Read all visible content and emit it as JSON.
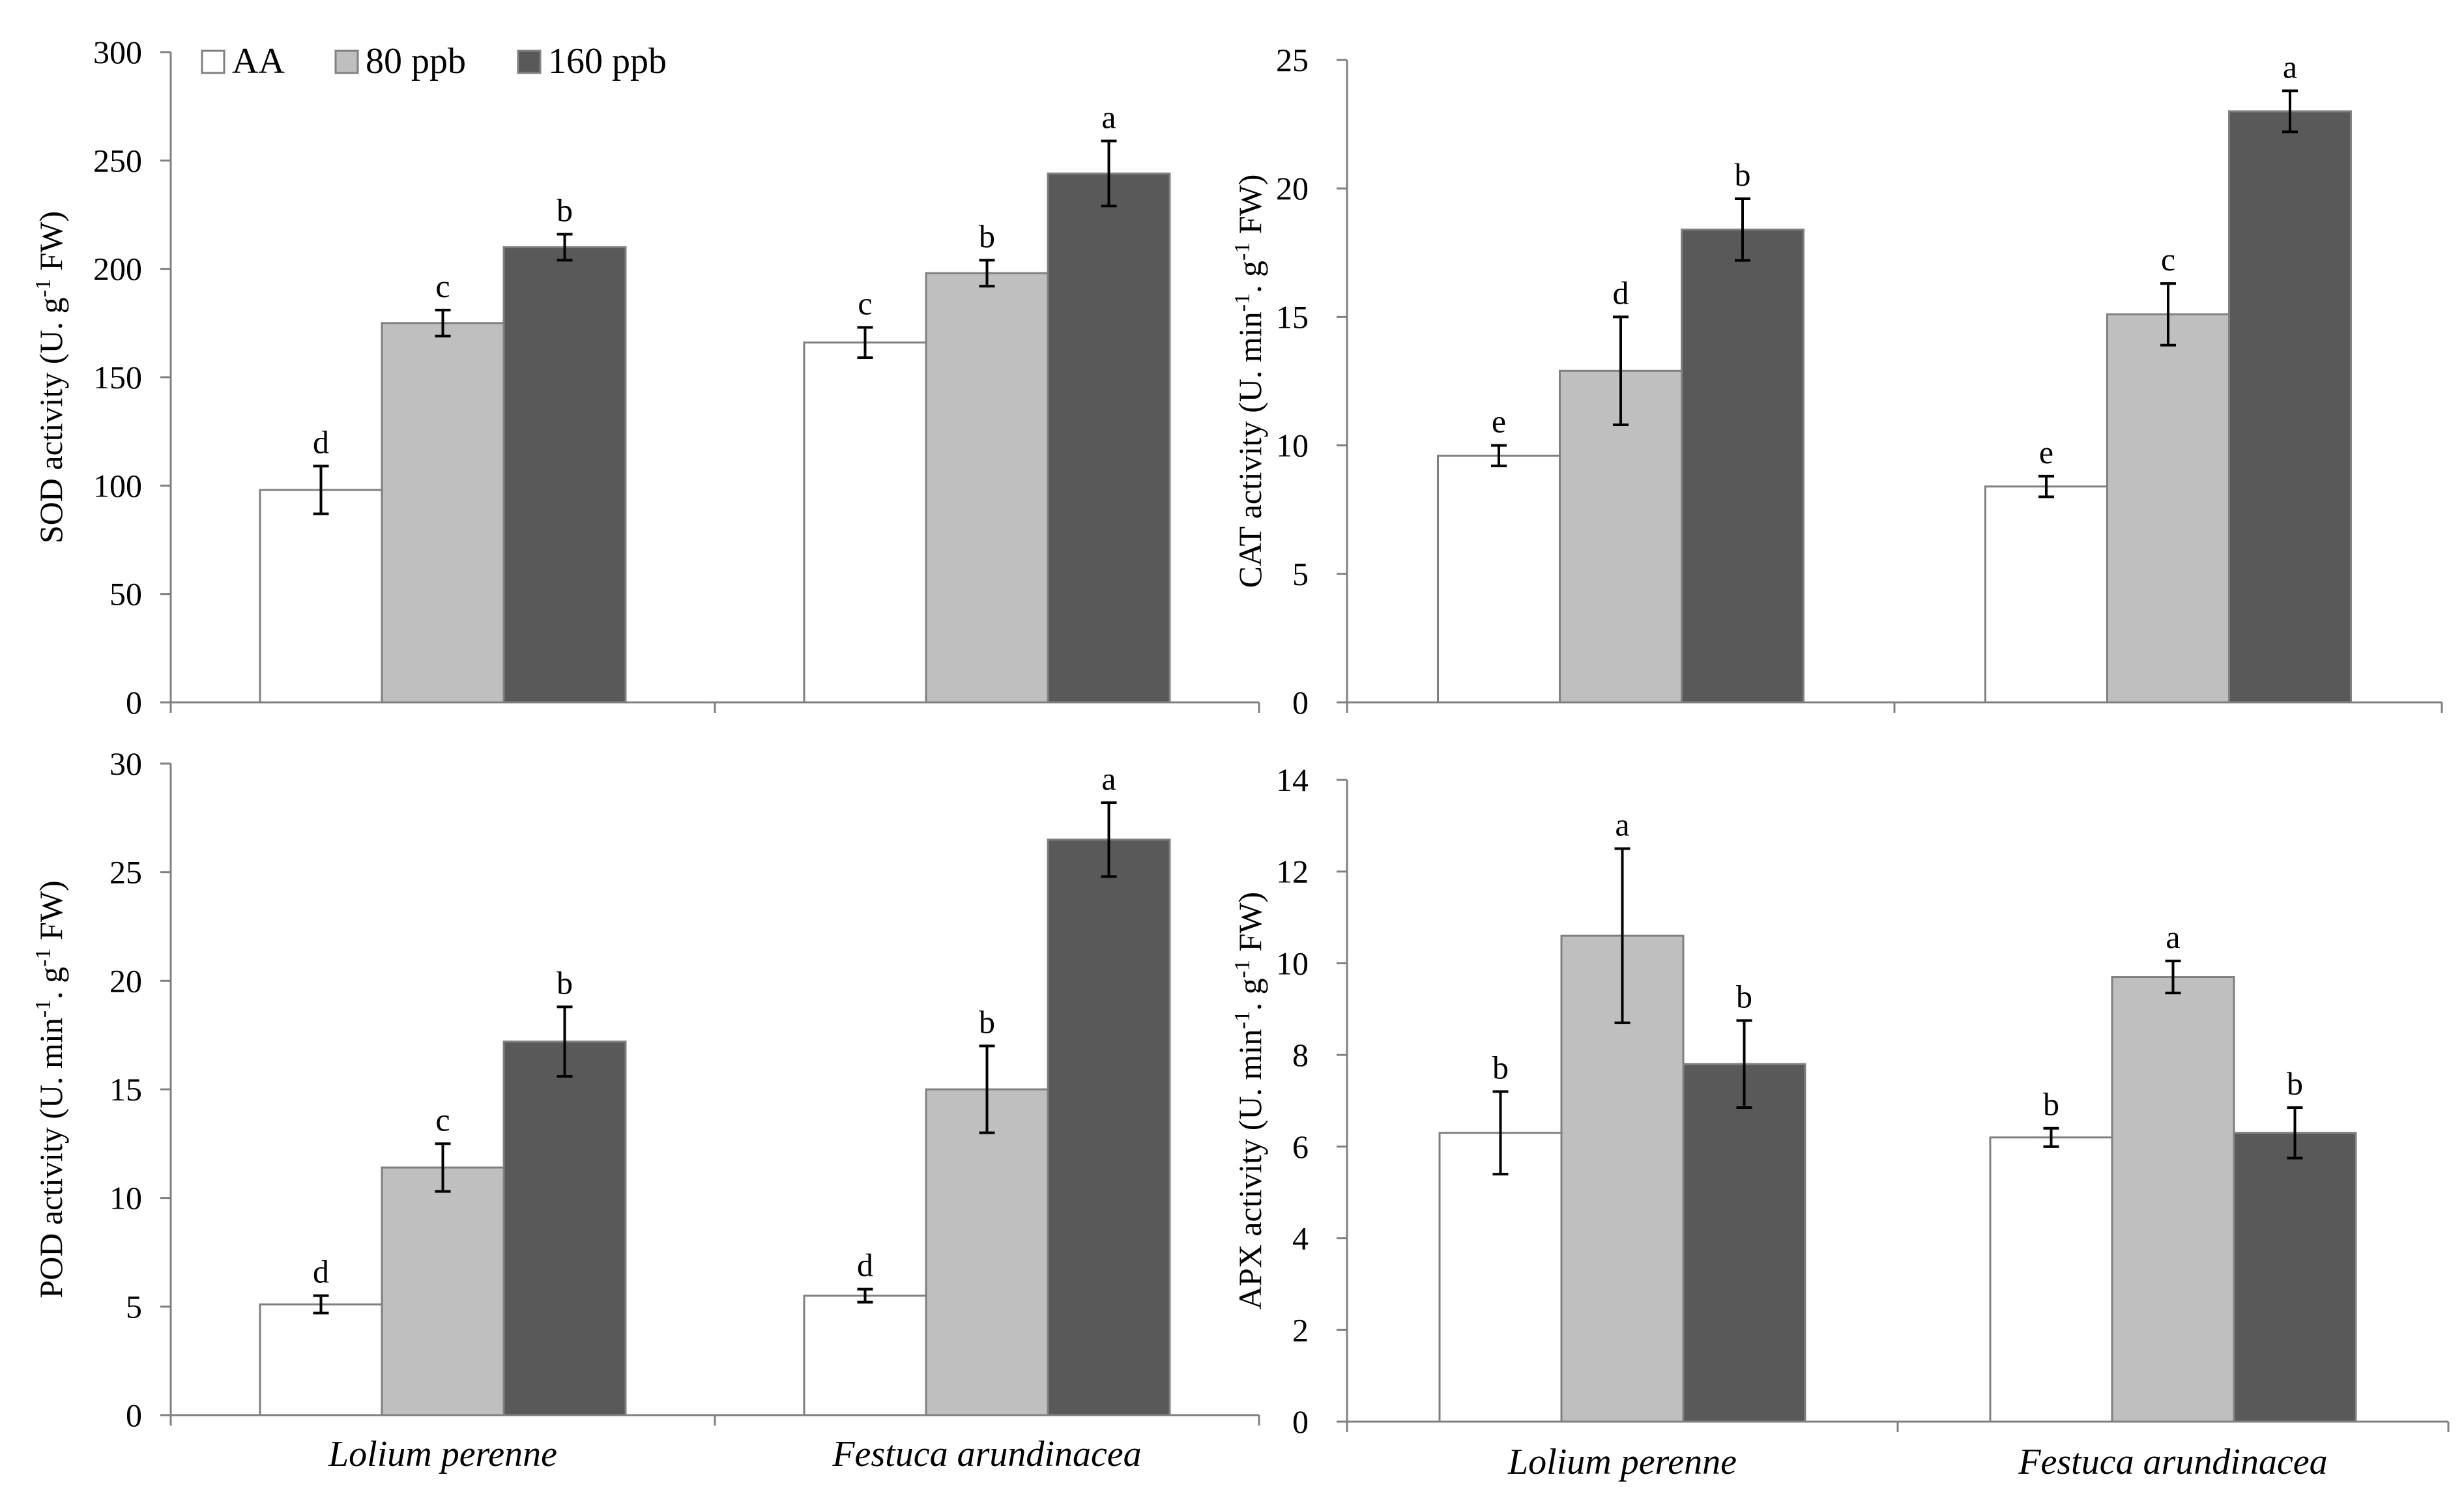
{
  "legend": [
    {
      "name": "AA",
      "fill": "#ffffff"
    },
    {
      "name": "80 ppb",
      "fill": "#bfbfbf"
    },
    {
      "name": "160 ppb",
      "fill": "#595959"
    }
  ],
  "colors": {
    "bar_outline": "#808080",
    "axis": "#808080",
    "error_bar": "#000000"
  },
  "chart_data": [
    {
      "type": "bar",
      "panel": "SOD",
      "categories": [
        "Lolium perenne",
        "Festuca arundinacea"
      ],
      "ylabel_main": "SOD activity  (U. g",
      "ylabel_sup": "-1",
      "ylabel_end": " FW)",
      "ylim": [
        0,
        300
      ],
      "yticks": [
        0,
        50,
        100,
        150,
        200,
        250,
        300
      ],
      "series": [
        {
          "name": "AA",
          "values": [
            98,
            166
          ],
          "errors": [
            11,
            7
          ],
          "letters": [
            "d",
            "c"
          ]
        },
        {
          "name": "80 ppb",
          "values": [
            175,
            198
          ],
          "errors": [
            6,
            6
          ],
          "letters": [
            "c",
            "b"
          ]
        },
        {
          "name": "160 ppb",
          "values": [
            210,
            244
          ],
          "errors": [
            6,
            15
          ],
          "letters": [
            "b",
            "a"
          ]
        }
      ]
    },
    {
      "type": "bar",
      "panel": "CAT",
      "categories": [
        "Lolium perenne",
        "Festuca arundinacea"
      ],
      "ylabel_main": "CAT activity  (U. min",
      "ylabel_sup": "-1",
      "ylabel_mid": ". g",
      "ylabel_sup2": "-1",
      "ylabel_end": " FW)",
      "ylim": [
        0,
        25
      ],
      "yticks": [
        0,
        5,
        10,
        15,
        20,
        25
      ],
      "series": [
        {
          "name": "AA",
          "values": [
            9.6,
            8.4
          ],
          "errors": [
            0.4,
            0.4
          ],
          "letters": [
            "e",
            "e"
          ]
        },
        {
          "name": "80 ppb",
          "values": [
            12.9,
            15.1
          ],
          "errors": [
            2.1,
            1.2
          ],
          "letters": [
            "d",
            "c"
          ]
        },
        {
          "name": "160 ppb",
          "values": [
            18.4,
            23.0
          ],
          "errors": [
            1.2,
            0.8
          ],
          "letters": [
            "b",
            "a"
          ]
        }
      ]
    },
    {
      "type": "bar",
      "panel": "POD",
      "categories": [
        "Lolium perenne",
        "Festuca arundinacea"
      ],
      "ylabel_main": "POD activity  (U. min",
      "ylabel_sup": "-1",
      "ylabel_mid": ". g",
      "ylabel_sup2": "-1",
      "ylabel_end": " FW)",
      "ylim": [
        0,
        30
      ],
      "yticks": [
        0,
        5,
        10,
        15,
        20,
        25,
        30
      ],
      "series": [
        {
          "name": "AA",
          "values": [
            5.1,
            5.5
          ],
          "errors": [
            0.4,
            0.3
          ],
          "letters": [
            "d",
            "d"
          ]
        },
        {
          "name": "80 ppb",
          "values": [
            11.4,
            15.0
          ],
          "errors": [
            1.1,
            2.0
          ],
          "letters": [
            "c",
            "b"
          ]
        },
        {
          "name": "160 ppb",
          "values": [
            17.2,
            26.5
          ],
          "errors": [
            1.6,
            1.7
          ],
          "letters": [
            "b",
            "a"
          ]
        }
      ]
    },
    {
      "type": "bar",
      "panel": "APX",
      "categories": [
        "Lolium perenne",
        "Festuca arundinacea"
      ],
      "ylabel_main": "APX activity  (U. min",
      "ylabel_sup": "-1",
      "ylabel_mid": ". g",
      "ylabel_sup2": "-1",
      "ylabel_end": " FW)",
      "ylim": [
        0,
        14
      ],
      "yticks": [
        0,
        2,
        4,
        6,
        8,
        10,
        12,
        14
      ],
      "series": [
        {
          "name": "AA",
          "values": [
            6.3,
            6.2
          ],
          "errors": [
            0.9,
            0.2
          ],
          "letters": [
            "b",
            "b"
          ]
        },
        {
          "name": "80 ppb",
          "values": [
            10.6,
            9.7
          ],
          "errors": [
            1.9,
            0.35
          ],
          "letters": [
            "a",
            "a"
          ]
        },
        {
          "name": "160 ppb",
          "values": [
            7.8,
            6.3
          ],
          "errors": [
            0.95,
            0.55
          ],
          "letters": [
            "b",
            "b"
          ]
        }
      ]
    }
  ]
}
